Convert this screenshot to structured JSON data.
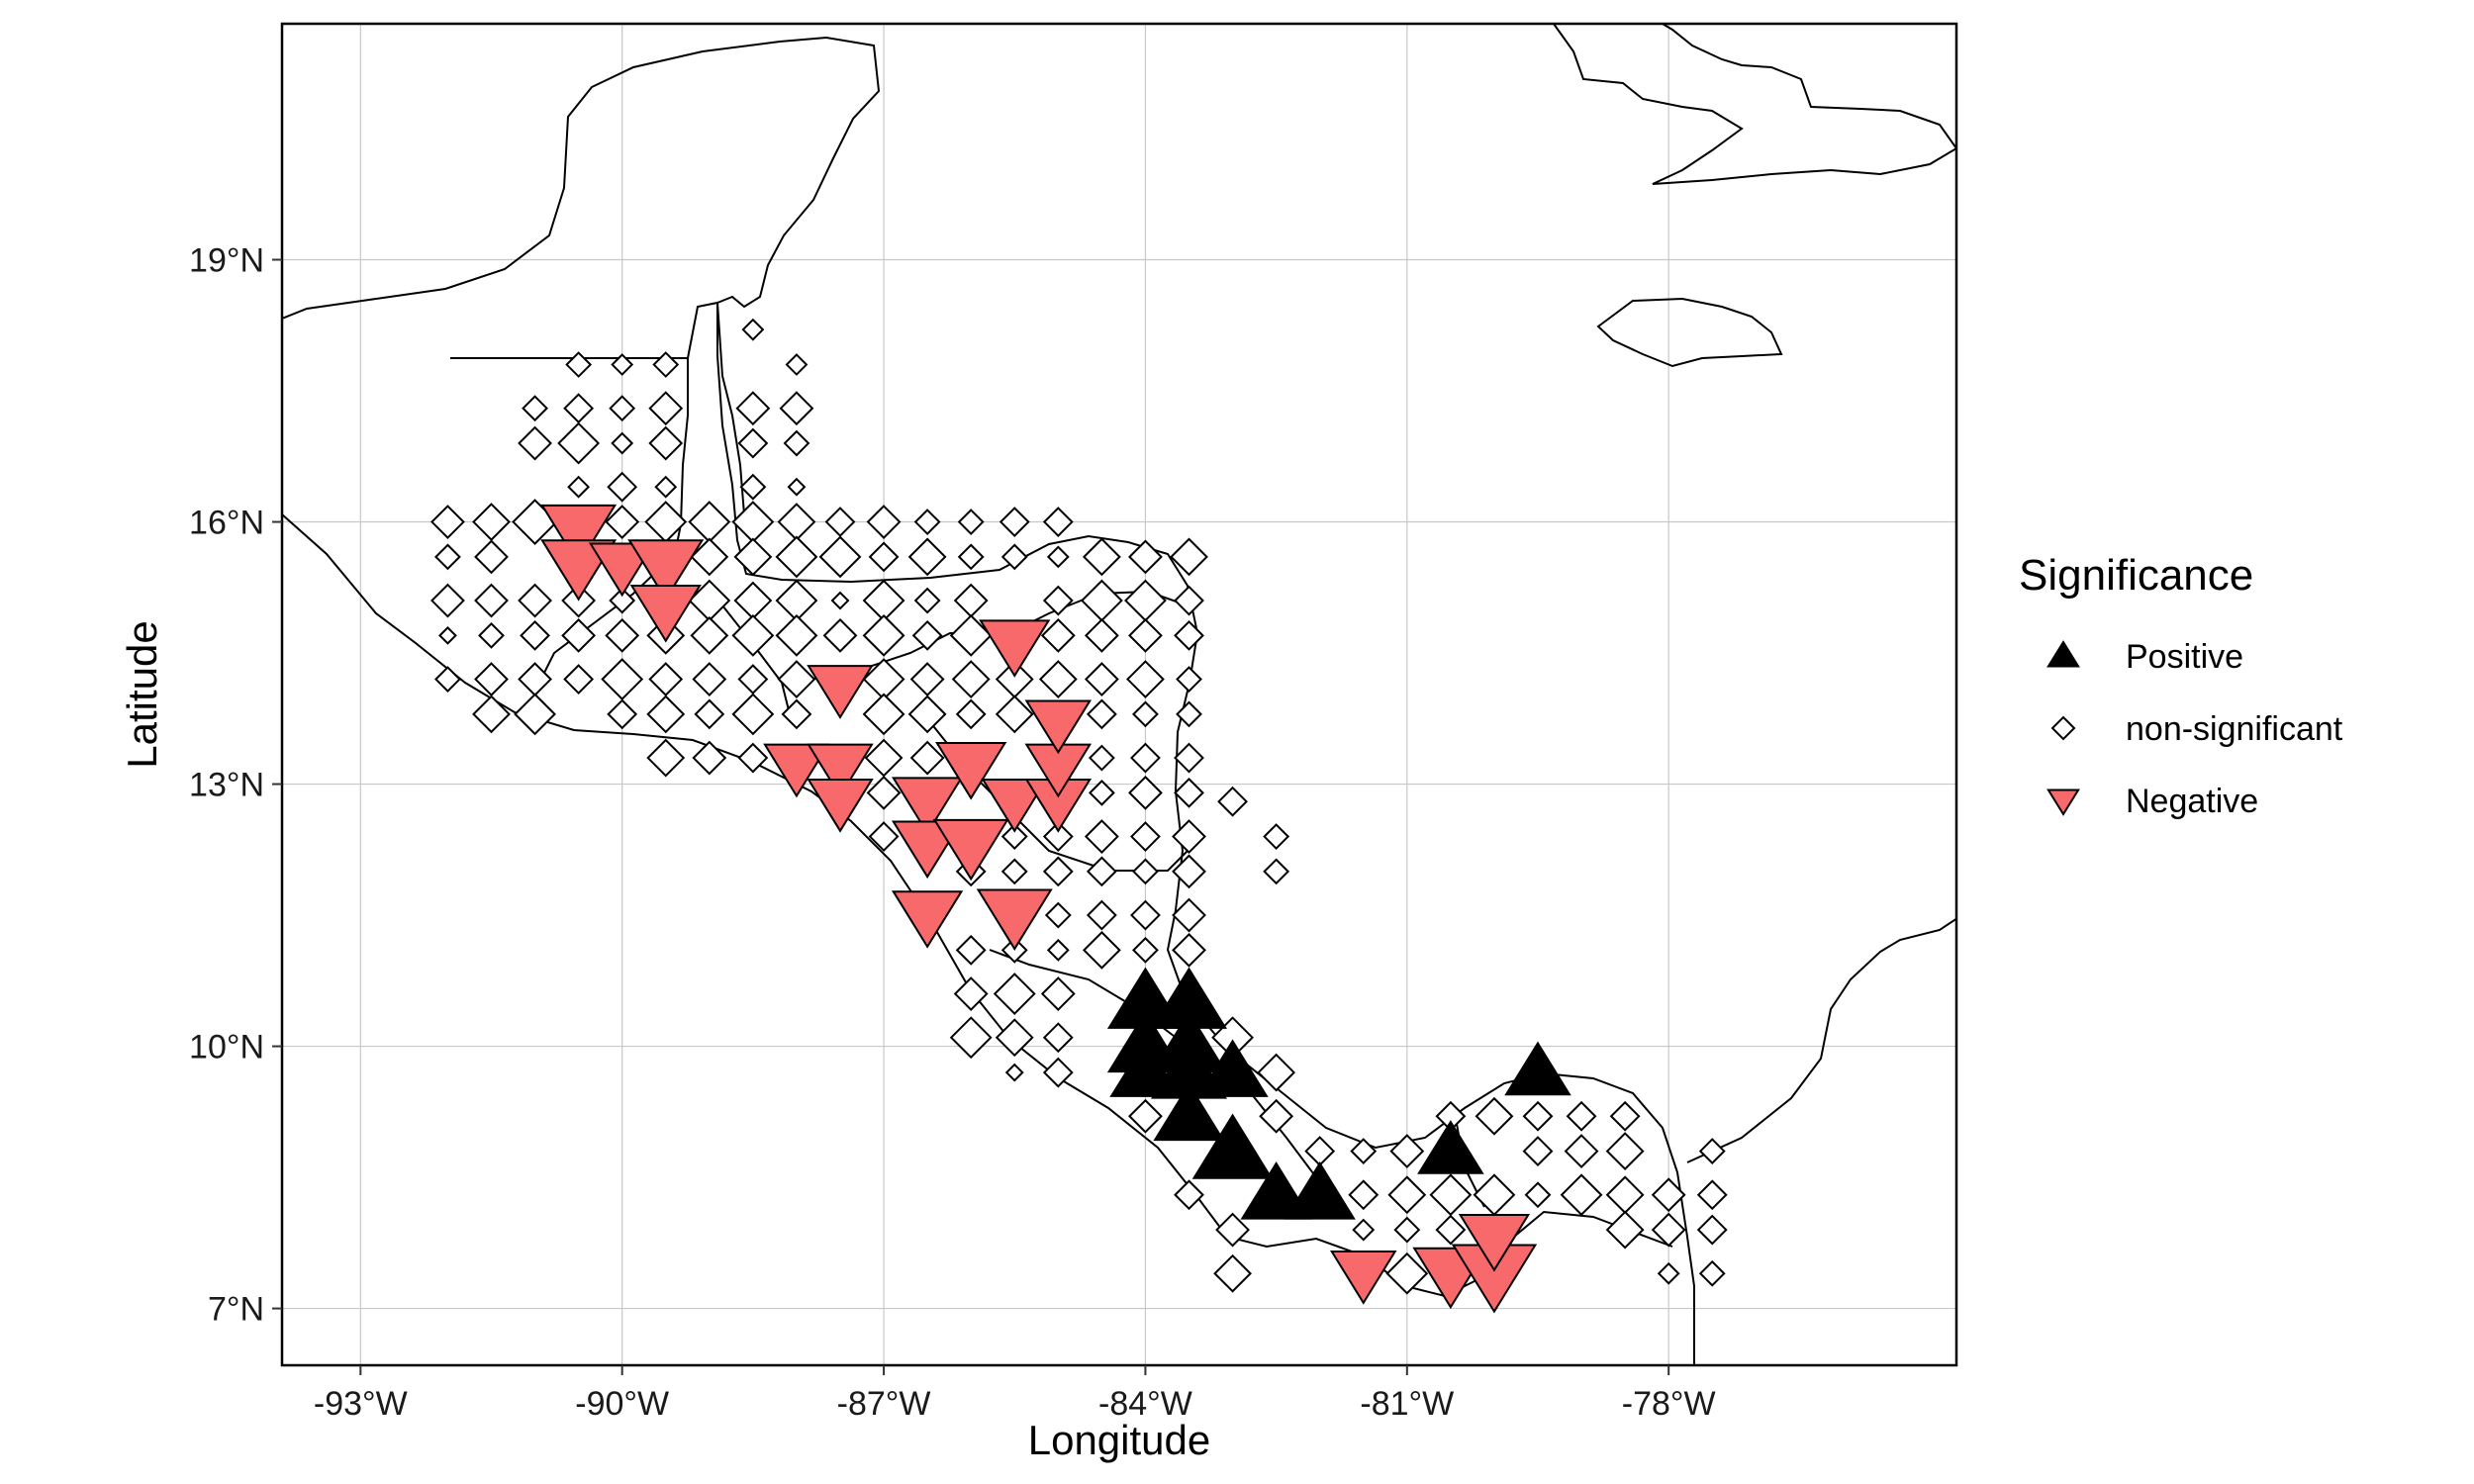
{
  "map": {
    "xlabel": "Longitude",
    "ylabel": "Latitude",
    "lon_range": [
      -93.9,
      -74.7
    ],
    "lat_range": [
      6.35,
      21.7
    ],
    "lon_ticks": [
      {
        "value": -93,
        "label": "-93°W"
      },
      {
        "value": -90,
        "label": "-90°W"
      },
      {
        "value": -87,
        "label": "-87°W"
      },
      {
        "value": -84,
        "label": "-84°W"
      },
      {
        "value": -81,
        "label": "-81°W"
      },
      {
        "value": -78,
        "label": "-78°W"
      }
    ],
    "lat_ticks": [
      {
        "value": 7,
        "label": "7°N"
      },
      {
        "value": 10,
        "label": "10°N"
      },
      {
        "value": 13,
        "label": "13°N"
      },
      {
        "value": 16,
        "label": "16°N"
      },
      {
        "value": 19,
        "label": "19°N"
      }
    ],
    "grid": true,
    "legend_position": "right"
  },
  "legend": {
    "title": "Significance",
    "items": [
      {
        "label": "Positive",
        "shape": "triangle-up",
        "color": "#000000"
      },
      {
        "label": "non-significant",
        "shape": "diamond",
        "color": "#ffffff"
      },
      {
        "label": "Negative",
        "shape": "triangle-down",
        "color": "#f8696b"
      }
    ]
  },
  "colors": {
    "positive": "#000000",
    "negative": "#f8696b",
    "outline": "#000000",
    "grid": "#c8c8c8"
  },
  "chart_data": {
    "type": "scatter",
    "positive": [
      [
        -84.0,
        10.5,
        1.0
      ],
      [
        -83.5,
        10.5,
        1.0
      ],
      [
        -84.0,
        10.0,
        1.0
      ],
      [
        -83.5,
        10.0,
        1.0
      ],
      [
        -84.0,
        9.7,
        0.9
      ],
      [
        -83.5,
        9.7,
        1.0
      ],
      [
        -83.0,
        9.7,
        0.9
      ],
      [
        -83.5,
        9.2,
        0.9
      ],
      [
        -83.0,
        8.8,
        1.1
      ],
      [
        -82.5,
        8.3,
        0.9
      ],
      [
        -82.0,
        8.3,
        0.9
      ],
      [
        -80.5,
        8.8,
        0.8
      ],
      [
        -79.5,
        9.7,
        0.8
      ]
    ],
    "negative": [
      [
        -90.5,
        15.9,
        1.0
      ],
      [
        -90.5,
        15.5,
        1.0
      ],
      [
        -90.0,
        15.5,
        0.8
      ],
      [
        -89.5,
        15.5,
        1.0
      ],
      [
        -89.5,
        15.0,
        0.9
      ],
      [
        -87.5,
        14.1,
        0.8
      ],
      [
        -88.0,
        13.2,
        0.8
      ],
      [
        -87.5,
        13.2,
        0.8
      ],
      [
        -87.5,
        12.8,
        0.8
      ],
      [
        -86.5,
        12.8,
        0.9
      ],
      [
        -86.0,
        13.2,
        0.9
      ],
      [
        -85.5,
        12.8,
        0.8
      ],
      [
        -85.0,
        12.8,
        0.8
      ],
      [
        -85.0,
        13.2,
        0.8
      ],
      [
        -85.0,
        13.7,
        0.8
      ],
      [
        -86.5,
        12.3,
        0.9
      ],
      [
        -86.0,
        12.3,
        1.0
      ],
      [
        -86.5,
        11.5,
        0.9
      ],
      [
        -85.5,
        11.5,
        1.0
      ],
      [
        -85.5,
        14.6,
        0.9
      ],
      [
        -81.5,
        7.4,
        0.8
      ],
      [
        -80.5,
        7.4,
        1.0
      ],
      [
        -80.0,
        7.4,
        1.2
      ],
      [
        -80.0,
        7.8,
        0.9
      ]
    ],
    "non_significant": [
      [
        -90.5,
        17.8,
        0.4
      ],
      [
        -90.0,
        17.8,
        0.3
      ],
      [
        -89.5,
        17.8,
        0.4
      ],
      [
        -88.5,
        18.2,
        0.3
      ],
      [
        -88.0,
        17.8,
        0.3
      ],
      [
        -91.0,
        17.3,
        0.4
      ],
      [
        -90.5,
        17.3,
        0.5
      ],
      [
        -90.0,
        17.3,
        0.4
      ],
      [
        -89.5,
        17.3,
        0.6
      ],
      [
        -88.5,
        17.3,
        0.6
      ],
      [
        -88.0,
        17.3,
        0.6
      ],
      [
        -91.0,
        16.9,
        0.6
      ],
      [
        -90.5,
        16.9,
        0.8
      ],
      [
        -90.0,
        16.9,
        0.3
      ],
      [
        -89.5,
        16.9,
        0.6
      ],
      [
        -88.5,
        16.9,
        0.5
      ],
      [
        -88.0,
        16.9,
        0.4
      ],
      [
        -90.5,
        16.4,
        0.3
      ],
      [
        -90.0,
        16.4,
        0.5
      ],
      [
        -89.5,
        16.4,
        0.3
      ],
      [
        -88.5,
        16.4,
        0.4
      ],
      [
        -88.0,
        16.4,
        0.2
      ],
      [
        -92.0,
        16.0,
        0.6
      ],
      [
        -91.5,
        16.0,
        0.7
      ],
      [
        -91.0,
        16.0,
        0.9
      ],
      [
        -90.0,
        16.0,
        0.6
      ],
      [
        -89.5,
        16.0,
        0.8
      ],
      [
        -89.0,
        16.0,
        0.8
      ],
      [
        -88.5,
        16.0,
        0.8
      ],
      [
        -88.0,
        16.0,
        0.7
      ],
      [
        -87.5,
        16.0,
        0.5
      ],
      [
        -87.0,
        16.0,
        0.6
      ],
      [
        -86.5,
        16.0,
        0.4
      ],
      [
        -86.0,
        16.0,
        0.4
      ],
      [
        -85.5,
        16.0,
        0.5
      ],
      [
        -85.0,
        16.0,
        0.5
      ],
      [
        -92.0,
        15.6,
        0.4
      ],
      [
        -91.5,
        15.6,
        0.6
      ],
      [
        -89.0,
        15.6,
        0.7
      ],
      [
        -88.5,
        15.6,
        0.7
      ],
      [
        -88.0,
        15.6,
        0.8
      ],
      [
        -87.5,
        15.6,
        0.8
      ],
      [
        -87.0,
        15.6,
        0.5
      ],
      [
        -86.5,
        15.6,
        0.7
      ],
      [
        -86.0,
        15.6,
        0.4
      ],
      [
        -85.5,
        15.6,
        0.4
      ],
      [
        -85.0,
        15.6,
        0.3
      ],
      [
        -84.5,
        15.6,
        0.7
      ],
      [
        -84.0,
        15.6,
        0.6
      ],
      [
        -83.5,
        15.6,
        0.7
      ],
      [
        -92.0,
        15.1,
        0.6
      ],
      [
        -91.5,
        15.1,
        0.6
      ],
      [
        -91.0,
        15.1,
        0.6
      ],
      [
        -90.5,
        15.1,
        0.6
      ],
      [
        -90.0,
        15.1,
        0.4
      ],
      [
        -89.0,
        15.1,
        0.8
      ],
      [
        -88.5,
        15.1,
        0.7
      ],
      [
        -88.0,
        15.1,
        0.8
      ],
      [
        -87.5,
        15.1,
        0.2
      ],
      [
        -87.0,
        15.1,
        0.8
      ],
      [
        -86.5,
        15.1,
        0.4
      ],
      [
        -86.0,
        15.1,
        0.6
      ],
      [
        -85.0,
        15.1,
        0.5
      ],
      [
        -84.5,
        15.1,
        0.8
      ],
      [
        -84.0,
        15.1,
        0.8
      ],
      [
        -83.5,
        15.1,
        0.5
      ],
      [
        -92.0,
        14.7,
        0.2
      ],
      [
        -91.5,
        14.7,
        0.4
      ],
      [
        -91.0,
        14.7,
        0.5
      ],
      [
        -90.5,
        14.7,
        0.6
      ],
      [
        -90.0,
        14.7,
        0.6
      ],
      [
        -89.5,
        14.7,
        0.7
      ],
      [
        -89.0,
        14.7,
        0.7
      ],
      [
        -88.5,
        14.7,
        0.8
      ],
      [
        -88.0,
        14.7,
        0.8
      ],
      [
        -87.5,
        14.7,
        0.6
      ],
      [
        -87.0,
        14.7,
        0.8
      ],
      [
        -86.5,
        14.7,
        0.5
      ],
      [
        -86.0,
        14.7,
        0.8
      ],
      [
        -85.0,
        14.7,
        0.6
      ],
      [
        -84.5,
        14.7,
        0.6
      ],
      [
        -84.0,
        14.7,
        0.6
      ],
      [
        -83.5,
        14.7,
        0.5
      ],
      [
        -92.0,
        14.2,
        0.4
      ],
      [
        -91.5,
        14.2,
        0.6
      ],
      [
        -91.0,
        14.2,
        0.6
      ],
      [
        -90.5,
        14.2,
        0.5
      ],
      [
        -90.0,
        14.2,
        0.8
      ],
      [
        -89.5,
        14.2,
        0.6
      ],
      [
        -89.0,
        14.2,
        0.6
      ],
      [
        -88.5,
        14.2,
        0.5
      ],
      [
        -88.0,
        14.2,
        0.7
      ],
      [
        -87.0,
        14.2,
        0.8
      ],
      [
        -86.5,
        14.2,
        0.6
      ],
      [
        -86.0,
        14.2,
        0.7
      ],
      [
        -85.5,
        14.2,
        0.7
      ],
      [
        -85.0,
        14.2,
        0.7
      ],
      [
        -84.5,
        14.2,
        0.6
      ],
      [
        -84.0,
        14.2,
        0.7
      ],
      [
        -83.5,
        14.2,
        0.4
      ],
      [
        -91.5,
        13.8,
        0.7
      ],
      [
        -91.0,
        13.8,
        0.8
      ],
      [
        -90.0,
        13.8,
        0.5
      ],
      [
        -89.5,
        13.8,
        0.7
      ],
      [
        -89.0,
        13.8,
        0.5
      ],
      [
        -88.5,
        13.8,
        0.8
      ],
      [
        -88.0,
        13.8,
        0.5
      ],
      [
        -87.0,
        13.8,
        0.8
      ],
      [
        -86.5,
        13.8,
        0.7
      ],
      [
        -86.0,
        13.8,
        0.5
      ],
      [
        -85.5,
        13.8,
        0.7
      ],
      [
        -84.5,
        13.8,
        0.5
      ],
      [
        -84.0,
        13.8,
        0.4
      ],
      [
        -83.5,
        13.8,
        0.4
      ],
      [
        -89.5,
        13.3,
        0.7
      ],
      [
        -89.0,
        13.3,
        0.6
      ],
      [
        -88.5,
        13.3,
        0.5
      ],
      [
        -87.0,
        13.3,
        0.7
      ],
      [
        -86.5,
        13.3,
        0.6
      ],
      [
        -84.5,
        13.3,
        0.4
      ],
      [
        -84.0,
        13.3,
        0.5
      ],
      [
        -83.5,
        13.3,
        0.5
      ],
      [
        -87.0,
        12.9,
        0.6
      ],
      [
        -84.5,
        12.9,
        0.4
      ],
      [
        -84.0,
        12.9,
        0.6
      ],
      [
        -83.5,
        12.9,
        0.5
      ],
      [
        -87.0,
        12.4,
        0.5
      ],
      [
        -85.5,
        12.4,
        0.4
      ],
      [
        -85.0,
        12.4,
        0.5
      ],
      [
        -84.5,
        12.4,
        0.6
      ],
      [
        -84.0,
        12.4,
        0.5
      ],
      [
        -83.5,
        12.4,
        0.6
      ],
      [
        -86.0,
        12.0,
        0.5
      ],
      [
        -85.5,
        12.0,
        0.4
      ],
      [
        -85.0,
        12.0,
        0.5
      ],
      [
        -84.5,
        12.0,
        0.5
      ],
      [
        -84.0,
        12.0,
        0.4
      ],
      [
        -83.5,
        12.0,
        0.6
      ],
      [
        -85.0,
        11.5,
        0.4
      ],
      [
        -84.5,
        11.5,
        0.5
      ],
      [
        -84.0,
        11.5,
        0.5
      ],
      [
        -83.5,
        11.5,
        0.6
      ],
      [
        -86.0,
        11.1,
        0.5
      ],
      [
        -85.5,
        11.1,
        0.4
      ],
      [
        -85.0,
        11.1,
        0.3
      ],
      [
        -84.5,
        11.1,
        0.7
      ],
      [
        -84.0,
        11.1,
        0.4
      ],
      [
        -83.5,
        11.1,
        0.6
      ],
      [
        -86.0,
        10.6,
        0.6
      ],
      [
        -85.5,
        10.6,
        0.8
      ],
      [
        -85.0,
        10.6,
        0.6
      ],
      [
        -86.0,
        10.1,
        0.8
      ],
      [
        -85.5,
        10.1,
        0.7
      ],
      [
        -85.0,
        10.1,
        0.5
      ],
      [
        -83.0,
        10.1,
        0.8
      ],
      [
        -85.5,
        9.7,
        0.2
      ],
      [
        -85.0,
        9.7,
        0.5
      ],
      [
        -82.5,
        9.7,
        0.7
      ],
      [
        -84.0,
        9.2,
        0.6
      ],
      [
        -82.5,
        9.2,
        0.6
      ],
      [
        -80.5,
        9.2,
        0.5
      ],
      [
        -80.0,
        9.2,
        0.7
      ],
      [
        -79.5,
        9.2,
        0.5
      ],
      [
        -79.0,
        9.2,
        0.5
      ],
      [
        -78.5,
        9.2,
        0.5
      ],
      [
        -82.0,
        8.8,
        0.5
      ],
      [
        -81.5,
        8.8,
        0.4
      ],
      [
        -81.0,
        8.8,
        0.6
      ],
      [
        -79.5,
        8.8,
        0.5
      ],
      [
        -79.0,
        8.8,
        0.6
      ],
      [
        -78.5,
        8.8,
        0.7
      ],
      [
        -77.5,
        8.8,
        0.4
      ],
      [
        -83.5,
        8.3,
        0.5
      ],
      [
        -81.5,
        8.3,
        0.5
      ],
      [
        -81.0,
        8.3,
        0.7
      ],
      [
        -80.5,
        8.3,
        0.8
      ],
      [
        -80.0,
        8.3,
        0.8
      ],
      [
        -79.5,
        8.3,
        0.4
      ],
      [
        -79.0,
        8.3,
        0.8
      ],
      [
        -78.5,
        8.3,
        0.7
      ],
      [
        -78.0,
        8.3,
        0.6
      ],
      [
        -77.5,
        8.3,
        0.5
      ],
      [
        -83.0,
        7.9,
        0.6
      ],
      [
        -81.5,
        7.9,
        0.3
      ],
      [
        -81.0,
        7.9,
        0.4
      ],
      [
        -80.5,
        7.9,
        0.5
      ],
      [
        -78.5,
        7.9,
        0.7
      ],
      [
        -78.0,
        7.9,
        0.6
      ],
      [
        -77.5,
        7.9,
        0.5
      ],
      [
        -83.0,
        7.4,
        0.7
      ],
      [
        -81.0,
        7.4,
        0.8
      ],
      [
        -78.0,
        7.4,
        0.3
      ],
      [
        -77.5,
        7.4,
        0.4
      ],
      [
        -83.0,
        12.8,
        0.5
      ],
      [
        -82.5,
        12.4,
        0.4
      ],
      [
        -82.5,
        12.0,
        0.4
      ]
    ]
  }
}
